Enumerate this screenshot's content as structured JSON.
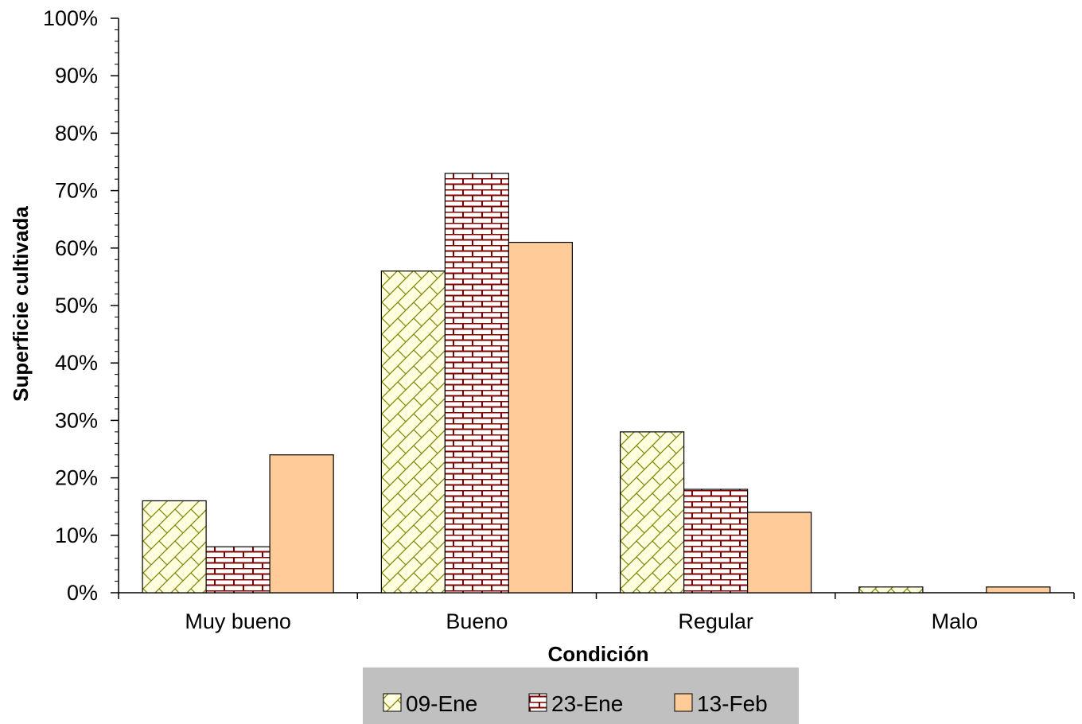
{
  "chart_data": {
    "type": "bar",
    "categories": [
      "Muy bueno",
      "Bueno",
      "Regular",
      "Malo"
    ],
    "series": [
      {
        "name": "09-Ene",
        "values": [
          16,
          56,
          28,
          1
        ],
        "color": "#FFFFE0",
        "pattern": "zigzag",
        "pattern_color": "#808000"
      },
      {
        "name": "23-Ene",
        "values": [
          8,
          73,
          18,
          0
        ],
        "color": "#FFFFFF",
        "pattern": "bricks",
        "pattern_color": "#800000"
      },
      {
        "name": "13-Feb",
        "values": [
          24,
          61,
          14,
          1
        ],
        "color": "#FFCC99",
        "pattern": "solid",
        "pattern_color": "#FFCC99"
      }
    ],
    "title": "",
    "xlabel": "Condición",
    "ylabel": "Superficie cultivada",
    "ylim": [
      0,
      100
    ],
    "yticks": [
      "0%",
      "10%",
      "20%",
      "30%",
      "40%",
      "50%",
      "60%",
      "70%",
      "80%",
      "90%",
      "100%"
    ],
    "grid": false,
    "legend_position": "bottom",
    "legend_background": "#C0C0C0"
  }
}
